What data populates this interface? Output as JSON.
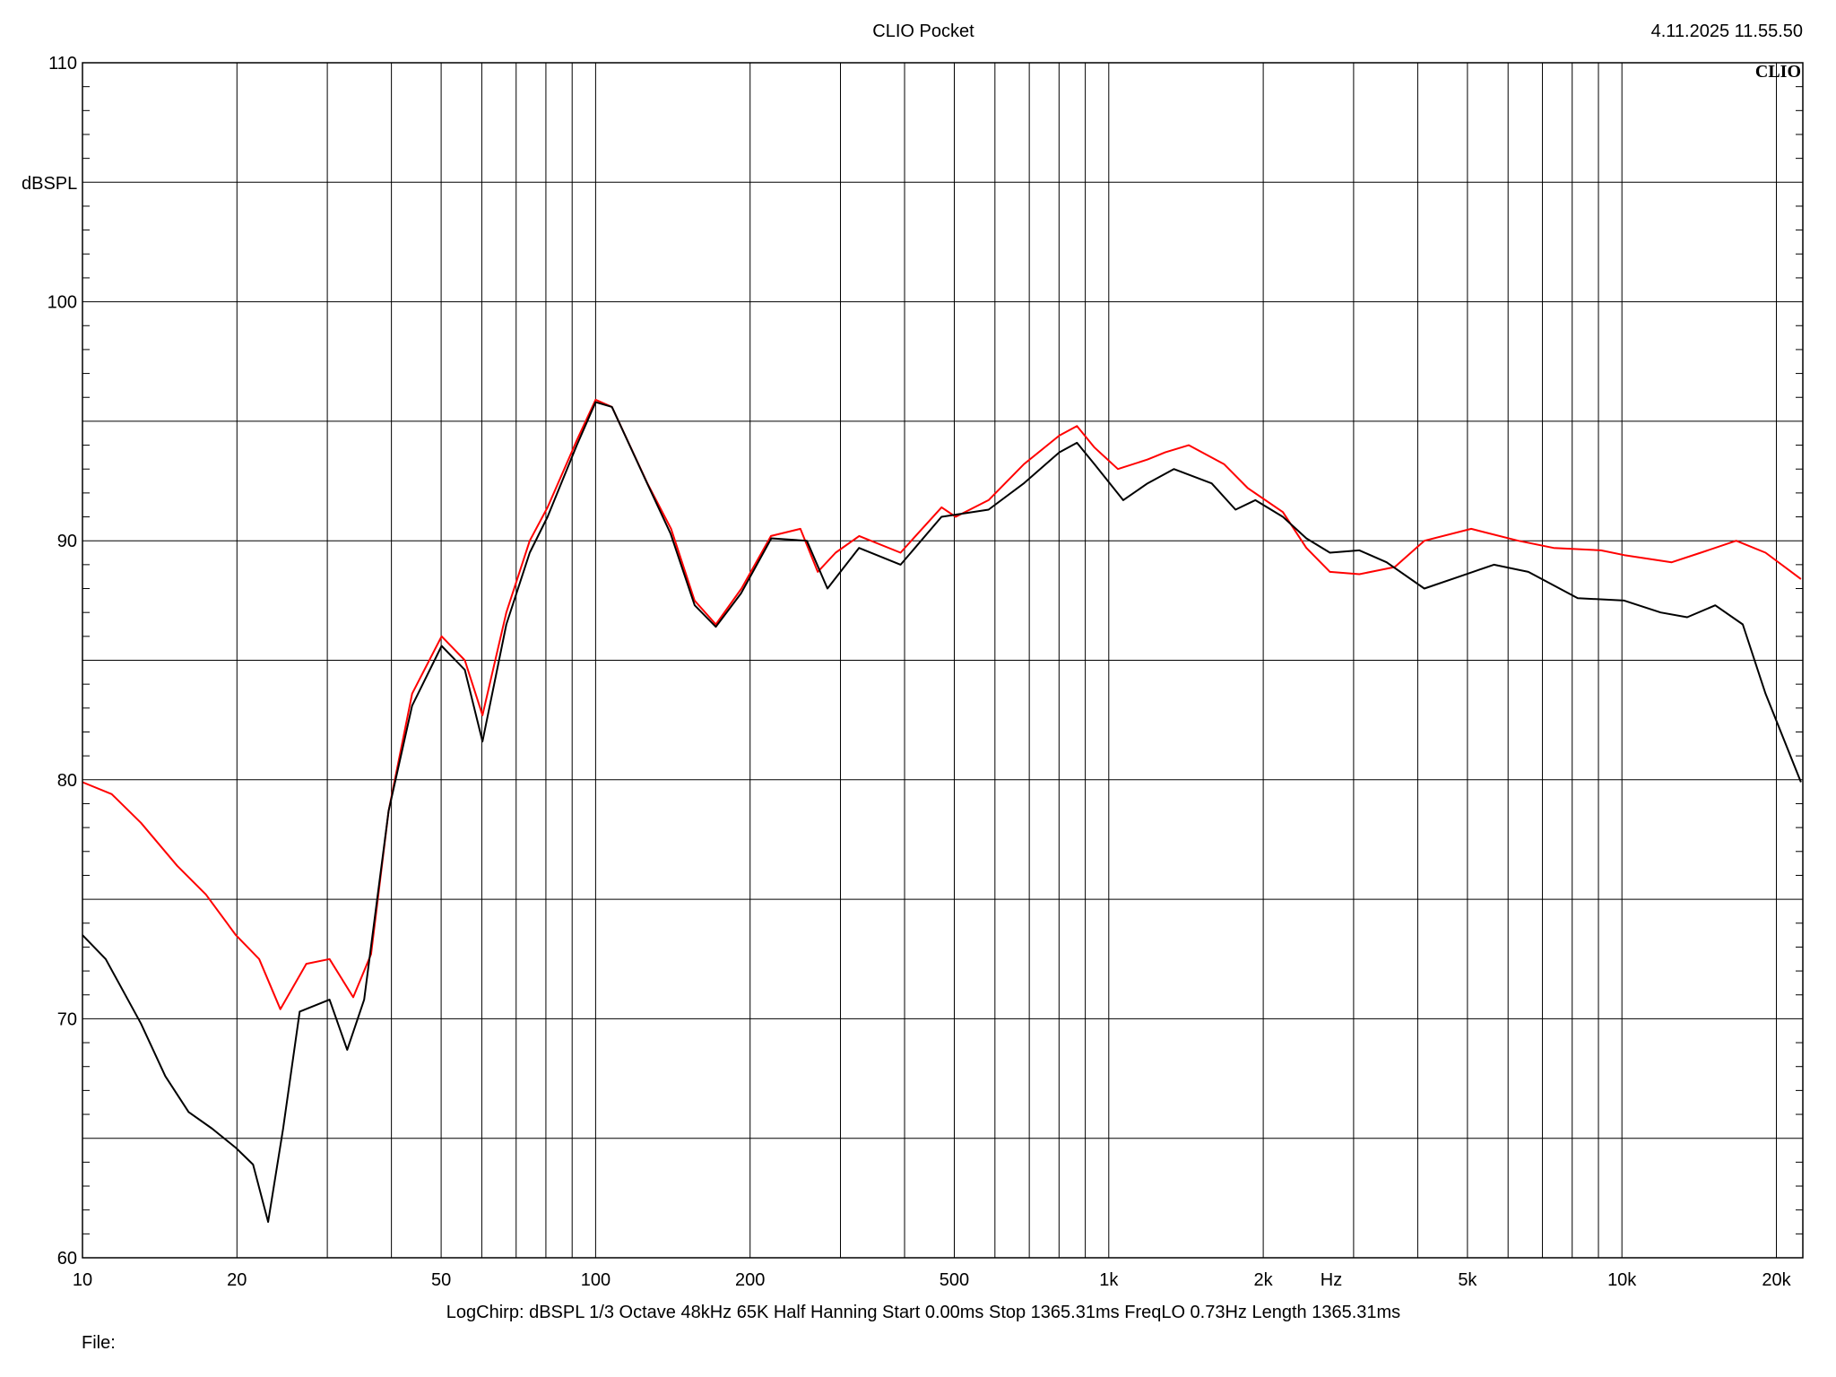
{
  "header": {
    "title": "CLIO Pocket",
    "timestamp": "4.11.2025 11.55.50",
    "logo": "CLIO"
  },
  "footer": {
    "settings": [
      "LogChirp:",
      "dBSPL",
      "1/3 Octave",
      "48kHz",
      "65K",
      "Half Hanning",
      "Start 0.00ms",
      "Stop 1365.31ms",
      "FreqLO 0.73Hz",
      "Length 1365.31ms"
    ],
    "file_label": "File:"
  },
  "chart_data": {
    "type": "line",
    "title": "CLIO Pocket",
    "xlabel": "Hz",
    "ylabel": "dBSPL",
    "x_scale": "log",
    "xlim": [
      10,
      22400
    ],
    "ylim": [
      60,
      110
    ],
    "grid": true,
    "x_tick_labels": [
      {
        "value": 10,
        "label": "10"
      },
      {
        "value": 20,
        "label": "20"
      },
      {
        "value": 50,
        "label": "50"
      },
      {
        "value": 100,
        "label": "100"
      },
      {
        "value": 200,
        "label": "200"
      },
      {
        "value": 500,
        "label": "500"
      },
      {
        "value": 1000,
        "label": "1k"
      },
      {
        "value": 2000,
        "label": "2k"
      },
      {
        "value": 5000,
        "label": "5k"
      },
      {
        "value": 10000,
        "label": "10k"
      },
      {
        "value": 20000,
        "label": "20k"
      }
    ],
    "y_ticks": [
      60,
      70,
      80,
      90,
      100,
      110
    ],
    "series": [
      {
        "color": "#ff0000",
        "x": [
          10,
          11.4,
          13.0,
          15.3,
          17.4,
          19.9,
          22.1,
          24.3,
          27.3,
          30.3,
          33.7,
          36.5,
          39.5,
          43.9,
          50.1,
          55.6,
          60.2,
          67.0,
          74.4,
          80.6,
          91.9,
          100,
          107.6,
          126.2,
          140.3,
          155.9,
          171.5,
          192.4,
          219.6,
          250.6,
          271,
          293.6,
          326.3,
          392.8,
          472.2,
          503,
          583,
          683,
          801,
          867,
          938,
          1042,
          1190,
          1288,
          1432,
          1679,
          1866,
          2184,
          2427,
          2698,
          3080,
          3609,
          4120,
          5085,
          6280,
          7360,
          9100,
          10100,
          12500,
          14250,
          16700,
          19050,
          22330
        ],
        "y": [
          79.9,
          79.4,
          78.2,
          76.4,
          75.2,
          73.5,
          72.5,
          70.4,
          72.3,
          72.5,
          70.9,
          72.7,
          78.7,
          83.6,
          86.0,
          85.0,
          82.7,
          87.0,
          90.0,
          91.4,
          94.2,
          95.9,
          95.6,
          92.4,
          90.5,
          87.5,
          86.5,
          88.0,
          90.2,
          90.5,
          88.7,
          89.5,
          90.2,
          89.5,
          91.4,
          91.0,
          91.7,
          93.2,
          94.4,
          94.8,
          93.9,
          93.0,
          93.4,
          93.7,
          94.0,
          93.2,
          92.2,
          91.2,
          89.7,
          88.7,
          88.6,
          88.9,
          90.0,
          90.5,
          90.0,
          89.7,
          89.6,
          89.4,
          89.1,
          89.5,
          90.0,
          89.5,
          88.4
        ]
      },
      {
        "color": "#000000",
        "x": [
          10,
          11.1,
          13.0,
          14.5,
          16.1,
          17.9,
          19.9,
          21.5,
          23.0,
          24.6,
          26.5,
          30.3,
          32.8,
          35.4,
          39.5,
          43.9,
          50.1,
          55.6,
          60.2,
          67.0,
          74.4,
          80.6,
          91.9,
          100,
          107.6,
          126,
          140,
          156,
          171.5,
          192,
          220,
          258,
          283,
          326,
          393,
          472,
          583,
          683,
          801,
          867,
          938,
          1067,
          1190,
          1339,
          1587,
          1766,
          1930,
          2184,
          2427,
          2698,
          3080,
          3478,
          4120,
          4820,
          5630,
          6570,
          8200,
          10100,
          11900,
          13400,
          15200,
          17200,
          19050,
          22330
        ],
        "y": [
          73.5,
          72.5,
          69.8,
          67.6,
          66.1,
          65.4,
          64.6,
          63.9,
          61.5,
          65.4,
          70.3,
          70.8,
          68.7,
          70.8,
          78.7,
          83.1,
          85.6,
          84.6,
          81.6,
          86.5,
          89.5,
          91.0,
          94.0,
          95.8,
          95.6,
          92.4,
          90.3,
          87.3,
          86.4,
          87.8,
          90.1,
          90.0,
          88.0,
          89.7,
          89.0,
          91.0,
          91.3,
          92.4,
          93.7,
          94.1,
          93.2,
          91.7,
          92.4,
          93.0,
          92.4,
          91.3,
          91.7,
          91.0,
          90.1,
          89.5,
          89.6,
          89.1,
          88.0,
          88.5,
          89.0,
          88.7,
          87.6,
          87.5,
          87.0,
          86.8,
          87.3,
          86.5,
          83.6,
          79.9
        ]
      }
    ]
  }
}
